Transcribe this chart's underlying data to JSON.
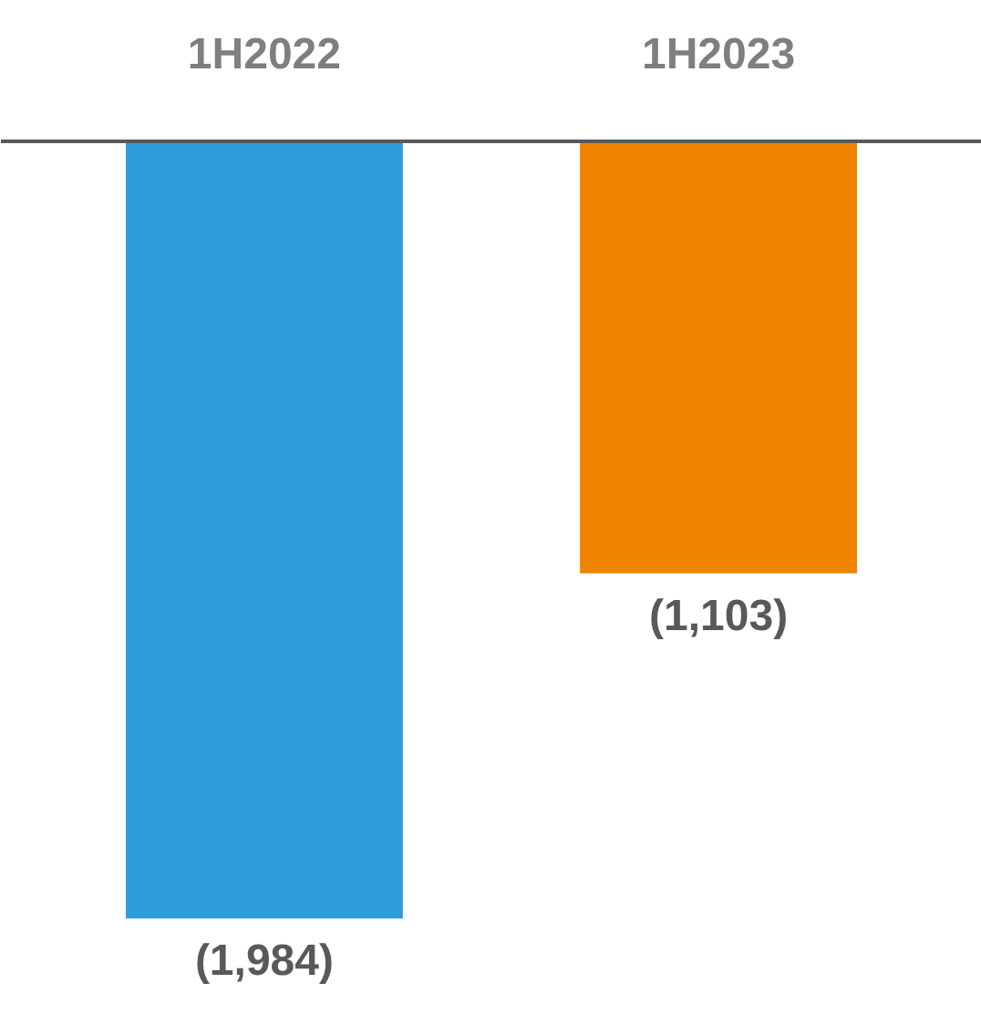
{
  "chart_data": {
    "type": "bar",
    "categories": [
      "1H2022",
      "1H2023"
    ],
    "values": [
      -1984,
      -1103
    ],
    "colors": [
      "#2e9cdb",
      "#f08300"
    ],
    "value_labels": [
      "(1,984)",
      "(1,103)"
    ]
  }
}
